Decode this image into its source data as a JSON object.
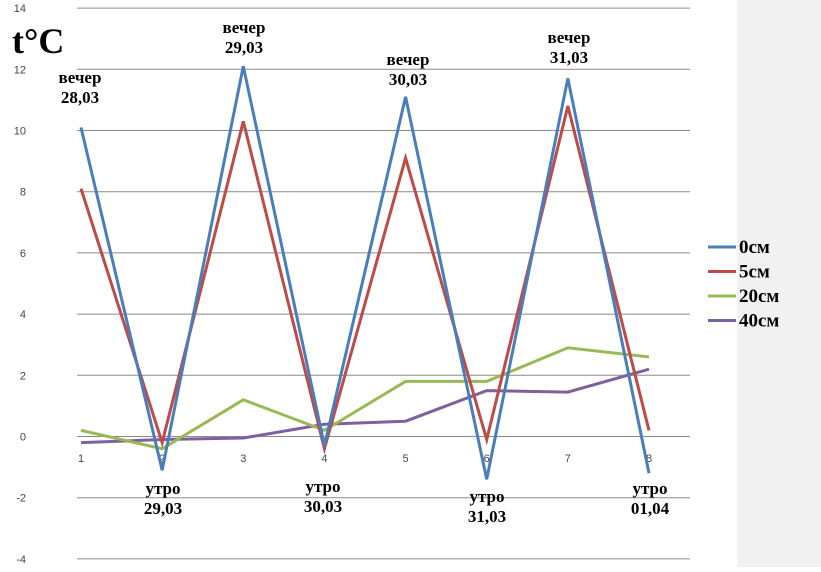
{
  "chart_data": {
    "type": "line",
    "x": [
      1,
      2,
      3,
      4,
      5,
      6,
      7,
      8
    ],
    "ylim": [
      -4,
      14
    ],
    "yticks": [
      -4,
      -2,
      0,
      2,
      4,
      6,
      8,
      10,
      12,
      14
    ],
    "xticks": [
      "1",
      "2",
      "3",
      "4",
      "5",
      "6",
      "7",
      "8"
    ],
    "grid": true,
    "legend_position": "right",
    "unit_label": "t°C",
    "series": [
      {
        "name": "0см",
        "color": "#4a7ebb",
        "values": [
          10.1,
          -1.1,
          12.1,
          -0.3,
          11.1,
          -1.4,
          11.7,
          -1.2
        ]
      },
      {
        "name": "5см",
        "color": "#be4b48",
        "values": [
          8.1,
          -0.2,
          10.3,
          -0.4,
          9.1,
          -0.1,
          10.8,
          0.2
        ]
      },
      {
        "name": "20см",
        "color": "#98b954",
        "values": [
          0.2,
          -0.4,
          1.2,
          0.2,
          1.8,
          1.8,
          2.9,
          2.6
        ]
      },
      {
        "name": "40см",
        "color": "#7d60a0",
        "values": [
          -0.2,
          -0.1,
          -0.05,
          0.4,
          0.5,
          1.5,
          1.45,
          2.2
        ]
      }
    ],
    "annotations": [
      {
        "line1": "вечер",
        "line2": "28,03",
        "x": 1,
        "pos": "above"
      },
      {
        "line1": "вечер",
        "line2": "29,03",
        "x": 3,
        "pos": "above"
      },
      {
        "line1": "вечер",
        "line2": "30,03",
        "x": 5,
        "pos": "above"
      },
      {
        "line1": "вечер",
        "line2": "31,03",
        "x": 7,
        "pos": "above"
      },
      {
        "line1": "утро",
        "line2": "29,03",
        "x": 2,
        "pos": "below"
      },
      {
        "line1": "утро",
        "line2": "30,03",
        "x": 4,
        "pos": "below"
      },
      {
        "line1": "утро",
        "line2": "31,03",
        "x": 6,
        "pos": "below"
      },
      {
        "line1": "утро",
        "line2": "01,04",
        "x": 8,
        "pos": "below"
      }
    ]
  }
}
